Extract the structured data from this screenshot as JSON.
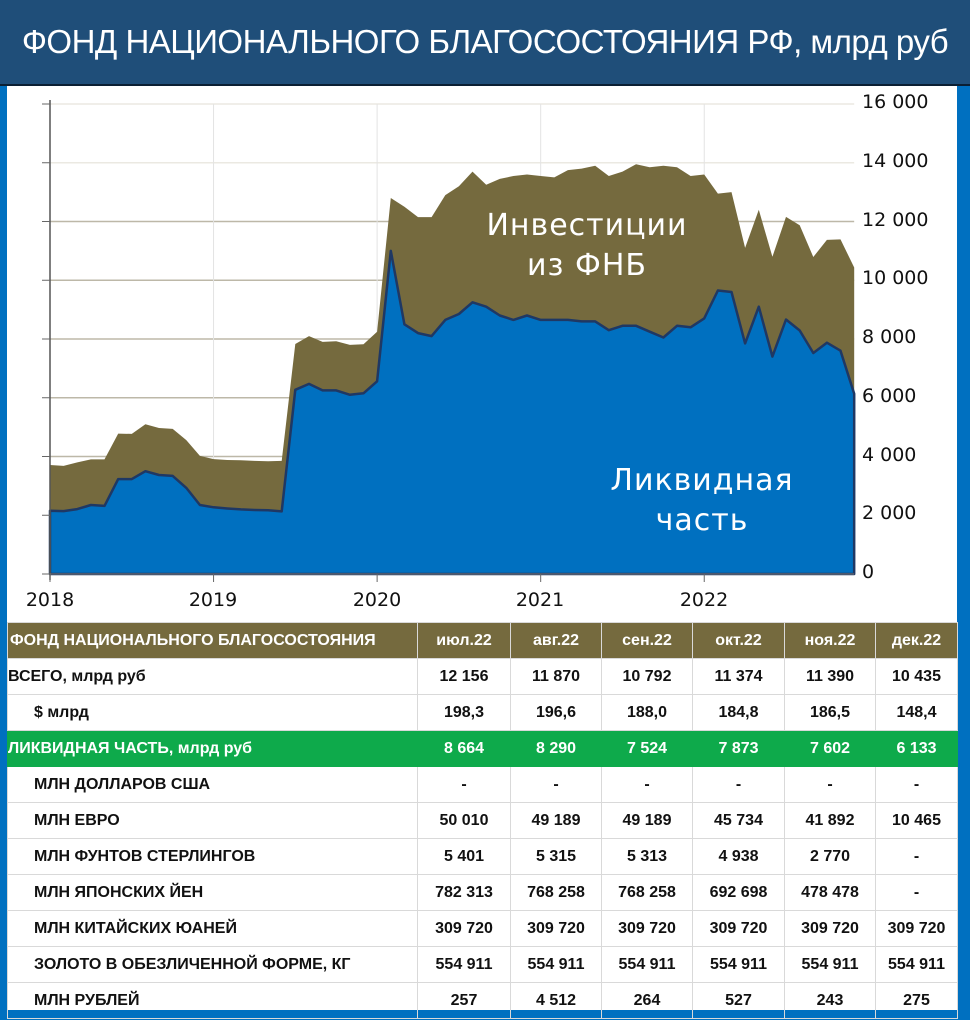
{
  "title": "ФОНД НАЦИОНАЛЬНОГО БЛАГОСОСТОЯНИЯ РФ, млрд руб",
  "colors": {
    "title_bg": "#1f4e79",
    "frame": "#0070c0",
    "liquid_area": "#0070c0",
    "liquid_line": "#1f3864",
    "investments_area": "#756a3e",
    "table_header_bg": "#756a3e",
    "green_row_bg": "#0eaa4b"
  },
  "chart": {
    "annotation_investments": [
      "Инвестиции",
      "из ФНБ"
    ],
    "annotation_liquid": [
      "Ликвидная",
      "часть"
    ],
    "y_ticks": [
      "16 000",
      "14 000",
      "12 000",
      "10 000",
      "8 000",
      "6 000",
      "4 000",
      "2 000",
      "0"
    ],
    "x_ticks": [
      "2018",
      "2019",
      "2020",
      "2021",
      "2022"
    ]
  },
  "chart_data": {
    "type": "area",
    "title": "ФОНД НАЦИОНАЛЬНОГО БЛАГОСОСТОЯНИЯ РФ, млрд руб",
    "xlabel": "",
    "ylabel": "млрд руб",
    "ylim": [
      0,
      16000
    ],
    "y_axis_position": "right",
    "grid": true,
    "x_tick_labels": [
      "2018",
      "2019",
      "2020",
      "2021",
      "2022"
    ],
    "x": [
      "2018-01",
      "2018-02",
      "2018-03",
      "2018-04",
      "2018-05",
      "2018-06",
      "2018-07",
      "2018-08",
      "2018-09",
      "2018-10",
      "2018-11",
      "2018-12",
      "2019-01",
      "2019-02",
      "2019-03",
      "2019-04",
      "2019-05",
      "2019-06",
      "2019-07",
      "2019-08",
      "2019-09",
      "2019-10",
      "2019-11",
      "2019-12",
      "2020-01",
      "2020-02",
      "2020-03",
      "2020-04",
      "2020-05",
      "2020-06",
      "2020-07",
      "2020-08",
      "2020-09",
      "2020-10",
      "2020-11",
      "2020-12",
      "2021-01",
      "2021-02",
      "2021-03",
      "2021-04",
      "2021-05",
      "2021-06",
      "2021-07",
      "2021-08",
      "2021-09",
      "2021-10",
      "2021-11",
      "2021-12",
      "2022-01",
      "2022-02",
      "2022-03",
      "2022-04",
      "2022-05",
      "2022-06",
      "2022-07",
      "2022-08",
      "2022-09",
      "2022-10",
      "2022-11",
      "2022-12"
    ],
    "series": [
      {
        "name": "Всего (Ликвидная часть + Инвестиции из ФНБ)",
        "values": [
          3710,
          3680,
          3800,
          3900,
          3900,
          4780,
          4770,
          5100,
          4970,
          4940,
          4560,
          4020,
          3910,
          3880,
          3870,
          3850,
          3840,
          3850,
          7830,
          8100,
          7900,
          7920,
          7800,
          7820,
          8250,
          12800,
          12500,
          12150,
          12150,
          12900,
          13200,
          13700,
          13250,
          13450,
          13550,
          13600,
          13550,
          13500,
          13750,
          13800,
          13900,
          13550,
          13700,
          13950,
          13850,
          13900,
          13850,
          13550,
          13600,
          12950,
          13000,
          11100,
          12400,
          10800,
          12156,
          11870,
          10792,
          11374,
          11390,
          10435
        ]
      },
      {
        "name": "Ликвидная часть",
        "values": [
          2150,
          2140,
          2210,
          2350,
          2320,
          3230,
          3230,
          3500,
          3370,
          3340,
          2930,
          2350,
          2270,
          2230,
          2200,
          2180,
          2170,
          2130,
          6270,
          6470,
          6250,
          6250,
          6100,
          6150,
          6560,
          11000,
          8500,
          8200,
          8100,
          8650,
          8850,
          9250,
          9100,
          8800,
          8650,
          8800,
          8650,
          8650,
          8650,
          8600,
          8600,
          8300,
          8450,
          8450,
          8250,
          8050,
          8450,
          8400,
          8700,
          9650,
          9600,
          7850,
          9100,
          7400,
          8664,
          8290,
          7524,
          7873,
          7602,
          6133
        ]
      }
    ],
    "annotations": [
      "Инвестиции из ФНБ",
      "Ликвидная часть"
    ]
  },
  "table": {
    "header": {
      "label": "ФОНД НАЦИОНАЛЬНОГО БЛАГОСОСТОЯНИЯ",
      "months": [
        "июл.22",
        "авг.22",
        "сен.22",
        "окт.22",
        "ноя.22",
        "дек.22"
      ]
    },
    "rows": [
      {
        "label": "ВСЕГО, млрд руб",
        "values": [
          "12 156",
          "11 870",
          "10 792",
          "11 374",
          "11 390",
          "10 435"
        ]
      },
      {
        "label": "$ млрд",
        "values": [
          "198,3",
          "196,6",
          "188,0",
          "184,8",
          "186,5",
          "148,4"
        ]
      },
      {
        "label": "ЛИКВИДНАЯ ЧАСТЬ, млрд руб",
        "values": [
          "8 664",
          "8 290",
          "7 524",
          "7 873",
          "7 602",
          "6 133"
        ]
      },
      {
        "label": "МЛН ДОЛЛАРОВ США",
        "values": [
          "-",
          "-",
          "-",
          "-",
          "-",
          "-"
        ]
      },
      {
        "label": "МЛН ЕВРО",
        "values": [
          "50 010",
          "49 189",
          "49 189",
          "45 734",
          "41 892",
          "10 465"
        ]
      },
      {
        "label": "МЛН ФУНТОВ СТЕРЛИНГОВ",
        "values": [
          "5 401",
          "5 315",
          "5 313",
          "4 938",
          "2 770",
          "-"
        ]
      },
      {
        "label": "МЛН ЯПОНСКИХ ЙЕН",
        "values": [
          "782 313",
          "768 258",
          "768 258",
          "692 698",
          "478 478",
          "-"
        ]
      },
      {
        "label": "МЛН КИТАЙСКИХ ЮАНЕЙ",
        "values": [
          "309 720",
          "309 720",
          "309 720",
          "309 720",
          "309 720",
          "309 720"
        ]
      },
      {
        "label": "ЗОЛОТО В ОБЕЗЛИЧЕННОЙ ФОРМЕ, КГ",
        "values": [
          "554 911",
          "554 911",
          "554 911",
          "554 911",
          "554 911",
          "554 911"
        ]
      },
      {
        "label": "МЛН РУБЛЕЙ",
        "values": [
          "257",
          "4 512",
          "264",
          "527",
          "243",
          "275"
        ]
      }
    ]
  }
}
